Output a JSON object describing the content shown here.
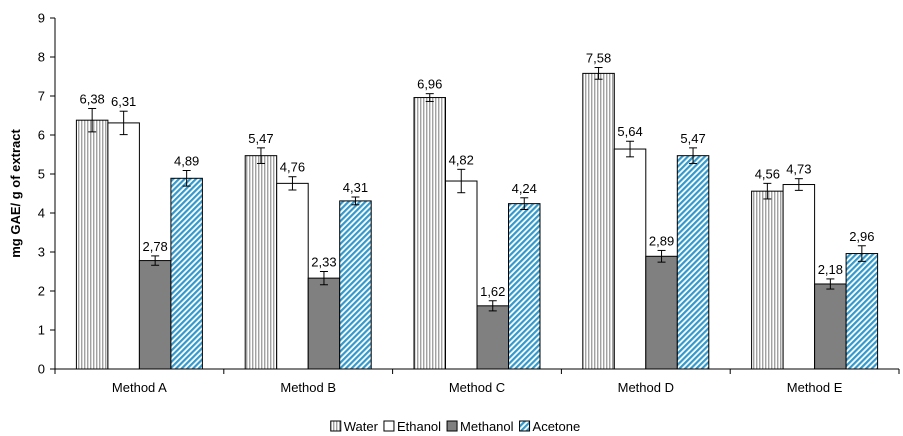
{
  "chart_data": {
    "type": "bar",
    "ylabel": "mg GAE/ g of extract",
    "xlabel": "",
    "ylim": [
      0,
      9
    ],
    "yticks": [
      "0",
      "1",
      "2",
      "3",
      "4",
      "5",
      "6",
      "7",
      "8",
      "9"
    ],
    "categories": [
      "Method A",
      "Method B",
      "Method C",
      "Method D",
      "Method E"
    ],
    "series": [
      {
        "name": "Water",
        "values": [
          6.38,
          5.47,
          6.96,
          7.58,
          4.56
        ],
        "labels": [
          "6,38",
          "5,47",
          "6,96",
          "7,58",
          "4,56"
        ],
        "errors": [
          0.3,
          0.2,
          0.1,
          0.15,
          0.2
        ],
        "fill": "vertical-hatch",
        "color": "#808080"
      },
      {
        "name": "Ethanol",
        "values": [
          6.31,
          4.76,
          4.82,
          5.64,
          4.73
        ],
        "labels": [
          "6,31",
          "4,76",
          "4,82",
          "5,64",
          "4,73"
        ],
        "errors": [
          0.3,
          0.17,
          0.3,
          0.2,
          0.15
        ],
        "fill": "solid",
        "color": "#ffffff"
      },
      {
        "name": "Methanol",
        "values": [
          2.78,
          2.33,
          1.62,
          2.89,
          2.18
        ],
        "labels": [
          "2,78",
          "2,33",
          "1,62",
          "2,89",
          "2,18"
        ],
        "errors": [
          0.12,
          0.17,
          0.13,
          0.15,
          0.13
        ],
        "fill": "solid",
        "color": "#808080"
      },
      {
        "name": "Acetone",
        "values": [
          4.89,
          4.31,
          4.24,
          5.47,
          2.96
        ],
        "labels": [
          "4,89",
          "4,31",
          "4,24",
          "5,47",
          "2,96"
        ],
        "errors": [
          0.2,
          0.1,
          0.15,
          0.2,
          0.2
        ],
        "fill": "diagonal-hatch",
        "color": "#3399cc"
      }
    ],
    "legend": "bottom",
    "grid": false
  }
}
